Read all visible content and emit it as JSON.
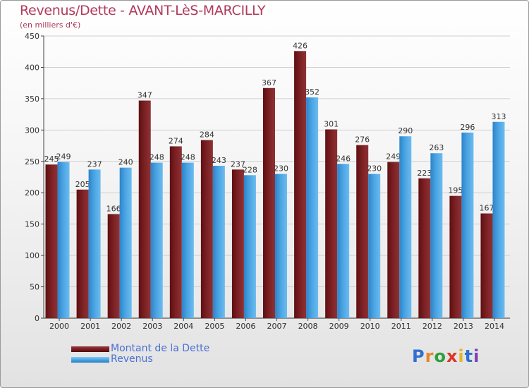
{
  "title": "Revenus/Dette - AVANT-LèS-MARCILLY",
  "subtitle": "(en milliers d'€)",
  "colors": {
    "title": "#b03a5a",
    "legend_text": "#4b6fd3",
    "dette": "#7a1f22",
    "revenus": "#4aa3e2"
  },
  "legend": [
    {
      "label": "Montant de la Dette",
      "color_key": "dette"
    },
    {
      "label": "Revenus",
      "color_key": "revenus"
    }
  ],
  "logo": {
    "text": "Proxiti"
  },
  "chart_data": {
    "type": "bar",
    "categories": [
      "2000",
      "2001",
      "2002",
      "2003",
      "2004",
      "2005",
      "2006",
      "2007",
      "2008",
      "2009",
      "2010",
      "2011",
      "2012",
      "2013",
      "2014"
    ],
    "series": [
      {
        "name": "Montant de la Dette",
        "values": [
          245,
          205,
          166,
          347,
          274,
          284,
          237,
          367,
          426,
          301,
          276,
          249,
          223,
          195,
          167
        ]
      },
      {
        "name": "Revenus",
        "values": [
          249,
          237,
          240,
          248,
          248,
          243,
          228,
          230,
          352,
          246,
          230,
          290,
          263,
          296,
          313
        ]
      }
    ],
    "ylim": [
      0,
      450
    ],
    "yticks": [
      0,
      50,
      100,
      150,
      200,
      250,
      300,
      350,
      400,
      450
    ],
    "grid": true,
    "legend_position": "bottom-left"
  }
}
